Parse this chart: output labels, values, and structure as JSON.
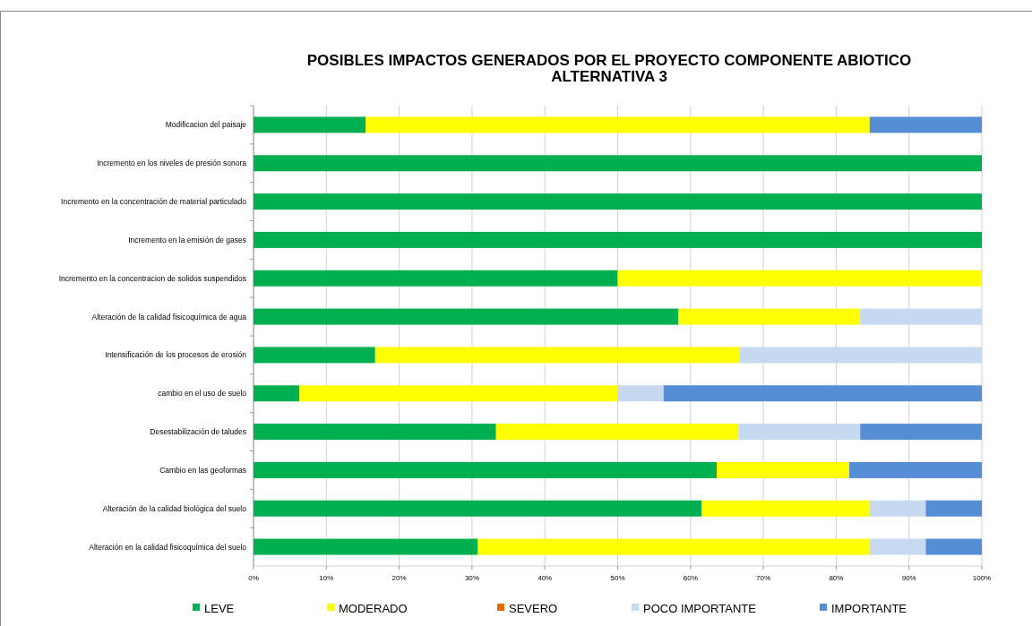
{
  "chart_data": {
    "type": "bar",
    "orientation": "horizontal",
    "stacked": true,
    "title": "POSIBLES IMPACTOS GENERADOS POR EL PROYECTO   COMPONENTE ABIOTICO\nALTERNATIVA 3",
    "categories": [
      "Modificacion del paisaje",
      "Incremento en los niveles de presión sonora",
      "Incremento en la concentración de material particulado",
      "Incremento en la emisión de gases",
      "Incremento en la concentracion de solidos suspendidos",
      "Alteración de la calidad fisicoquímica de agua",
      "Intensificación de los procesos de erosión",
      "cambio en el uso de suelo",
      "Desestabilización de taludes",
      "Cambio en las geoformas",
      "Alteración de la calidad biológica del suelo",
      "Alteración en la calidad fisicoquímica del suelo"
    ],
    "series": [
      {
        "name": "LEVE",
        "color": "#00b050",
        "values": [
          15.4,
          100,
          100,
          100,
          50,
          58.3,
          16.7,
          6.3,
          33.3,
          63.6,
          61.5,
          30.8
        ]
      },
      {
        "name": "MODERADO",
        "color": "#ffff00",
        "values": [
          69.2,
          0,
          0,
          0,
          50,
          25,
          50,
          43.7,
          33.3,
          18.2,
          23.1,
          53.8
        ]
      },
      {
        "name": "SEVERO",
        "color": "#e36c09",
        "values": [
          0,
          0,
          0,
          0,
          0,
          0,
          0,
          0,
          0,
          0,
          0,
          0
        ]
      },
      {
        "name": "POCO  IMPORTANTE",
        "color": "#c6d9f1",
        "values": [
          0,
          0,
          0,
          0,
          0,
          16.7,
          33.3,
          6.3,
          16.7,
          0,
          7.7,
          7.7
        ]
      },
      {
        "name": "IMPORTANTE",
        "color": "#558ed5",
        "values": [
          15.4,
          0,
          0,
          0,
          0,
          0,
          0,
          43.7,
          16.7,
          18.2,
          7.7,
          7.7
        ]
      }
    ],
    "xlim": [
      0,
      100
    ],
    "xticks": [
      {
        "value": 0,
        "label": "0%"
      },
      {
        "value": 10,
        "label": "10%"
      },
      {
        "value": 20,
        "label": "20%"
      },
      {
        "value": 30,
        "label": "30%"
      },
      {
        "value": 40,
        "label": "40%"
      },
      {
        "value": 50,
        "label": "50%"
      },
      {
        "value": 60,
        "label": "60%"
      },
      {
        "value": 70,
        "label": "70%"
      },
      {
        "value": 80,
        "label": "80%"
      },
      {
        "value": 90,
        "label": "90%"
      },
      {
        "value": 100,
        "label": "100%"
      }
    ],
    "grid": "x",
    "legend": "bottom"
  }
}
